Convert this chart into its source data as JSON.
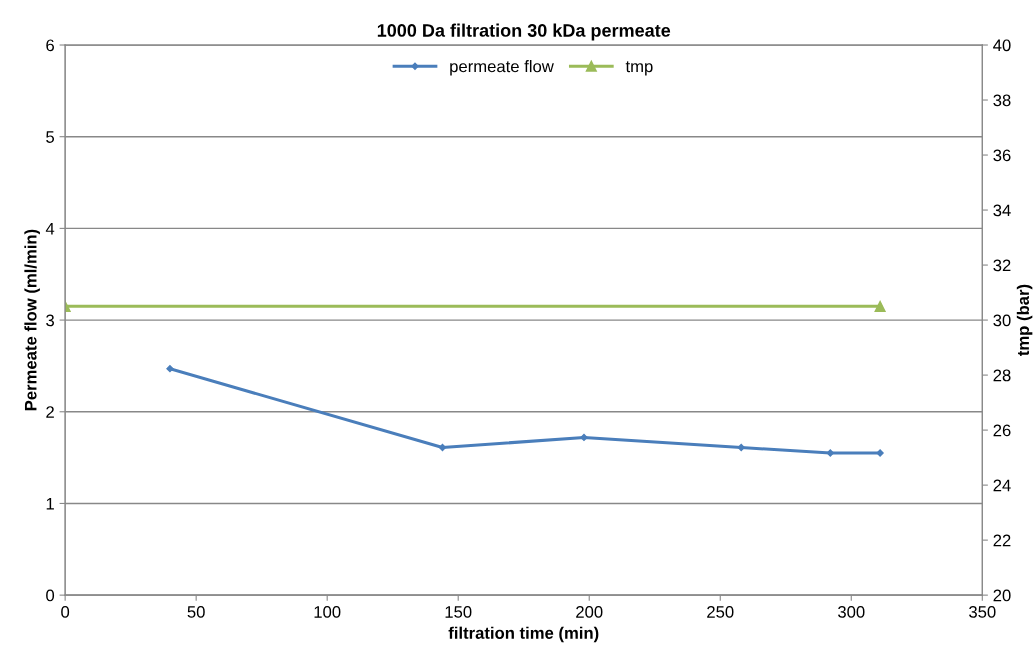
{
  "chart_data": {
    "type": "line",
    "title": "1000 Da filtration 30 kDa permeate",
    "xlabel": "filtration time (min)",
    "ylabel": "Permeate flow (ml/min)",
    "y2label": "tmp (bar)",
    "xlim": [
      0,
      350
    ],
    "xticks": [
      0,
      50,
      100,
      150,
      200,
      250,
      300,
      350
    ],
    "ylim": [
      0,
      6
    ],
    "yticks": [
      0,
      1,
      2,
      3,
      4,
      5,
      6
    ],
    "y2lim": [
      20,
      40
    ],
    "y2ticks": [
      20,
      22,
      24,
      26,
      28,
      30,
      32,
      34,
      36,
      38,
      40
    ],
    "grid": "y",
    "legend": "top",
    "line_style": "solid",
    "series": [
      {
        "name": "permeate flow",
        "color": "#4a7ebb",
        "marker": "diamond",
        "x": [
          40,
          144,
          198,
          258,
          292,
          311
        ],
        "values": [
          2.47,
          1.61,
          1.72,
          1.61,
          1.55,
          1.55
        ]
      },
      {
        "name": "tmp",
        "color": "#9bbb59",
        "marker": "triangle",
        "axis": "y2",
        "x": [
          0,
          311
        ],
        "values": [
          30.5,
          30.5
        ]
      }
    ]
  }
}
